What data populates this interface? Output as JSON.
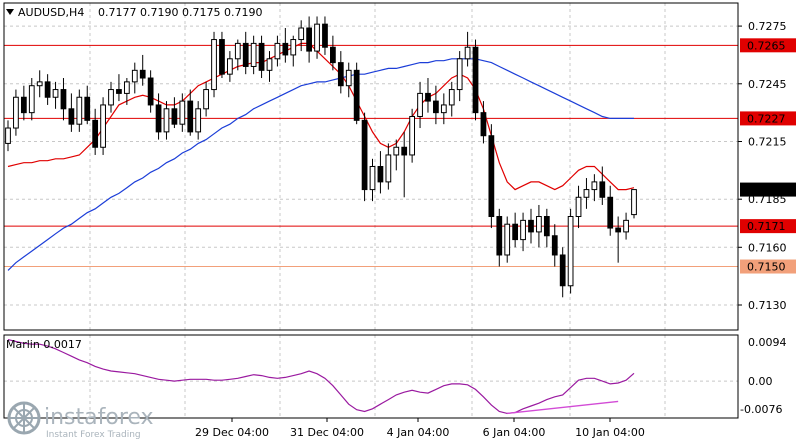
{
  "header": {
    "symbol_tf": "AUDUSD,H4",
    "ohlc": "0.7177 0.7190 0.7175 0.7190"
  },
  "oscillator": {
    "label": "Marlin 0.0017",
    "ticks": [
      "0.0094",
      "0.00",
      "-0.0076"
    ]
  },
  "watermark": {
    "brand": "instaforex",
    "tagline": "Instant Forex Trading"
  },
  "colors": {
    "background": "#ffffff",
    "grid": "#c8c8c8",
    "level_line": "#e00000",
    "level_line_light": "#f2a07a",
    "ma_fast": "#e00000",
    "ma_slow": "#1c3ed8",
    "oscillator": "#9a1aa0",
    "divergence": "#d24bd6",
    "current_price_bg": "#000000",
    "level_label_bg": "#e00000"
  },
  "chart_data": {
    "type": "candlestick",
    "title": "AUDUSD,H4",
    "y_ticks": [
      0.7275,
      0.7245,
      0.7215,
      0.7185,
      0.716,
      0.713
    ],
    "ylim": [
      0.7117,
      0.7287
    ],
    "x_ticks": [
      "29 Dec 04:00",
      "31 Dec 04:00",
      "4 Jan 04:00",
      "6 Jan 04:00",
      "10 Jan 04:00"
    ],
    "levels": [
      {
        "value": 0.7265,
        "label": "0.7265",
        "style": "solid"
      },
      {
        "value": 0.7227,
        "label": "0.7227",
        "style": "solid"
      },
      {
        "value": 0.7171,
        "label": "0.7171",
        "style": "solid"
      },
      {
        "value": 0.715,
        "label": "0.7150",
        "style": "light"
      }
    ],
    "current_price": {
      "value": 0.719,
      "label": "0.7190"
    },
    "candles": [
      [
        0.7214,
        0.7226,
        0.721,
        0.7222
      ],
      [
        0.7222,
        0.7242,
        0.7218,
        0.7238
      ],
      [
        0.7238,
        0.7244,
        0.7226,
        0.723
      ],
      [
        0.723,
        0.7248,
        0.7226,
        0.7244
      ],
      [
        0.7244,
        0.7252,
        0.7238,
        0.7246
      ],
      [
        0.7246,
        0.725,
        0.7234,
        0.7238
      ],
      [
        0.7238,
        0.7246,
        0.7232,
        0.7242
      ],
      [
        0.7242,
        0.7248,
        0.7226,
        0.7232
      ],
      [
        0.7232,
        0.724,
        0.722,
        0.7224
      ],
      [
        0.7224,
        0.7242,
        0.722,
        0.7238
      ],
      [
        0.7238,
        0.7244,
        0.7224,
        0.7226
      ],
      [
        0.7226,
        0.7232,
        0.7208,
        0.7212
      ],
      [
        0.7212,
        0.7238,
        0.7208,
        0.7234
      ],
      [
        0.7234,
        0.7246,
        0.723,
        0.7242
      ],
      [
        0.7242,
        0.725,
        0.7236,
        0.724
      ],
      [
        0.724,
        0.7248,
        0.7234,
        0.7246
      ],
      [
        0.7246,
        0.7256,
        0.724,
        0.7252
      ],
      [
        0.7252,
        0.726,
        0.7244,
        0.7248
      ],
      [
        0.7248,
        0.7252,
        0.723,
        0.7234
      ],
      [
        0.7234,
        0.724,
        0.7216,
        0.722
      ],
      [
        0.722,
        0.7236,
        0.7216,
        0.7232
      ],
      [
        0.7232,
        0.7238,
        0.7222,
        0.7224
      ],
      [
        0.7224,
        0.724,
        0.722,
        0.7236
      ],
      [
        0.7236,
        0.7242,
        0.7218,
        0.722
      ],
      [
        0.722,
        0.7236,
        0.7216,
        0.7232
      ],
      [
        0.7232,
        0.7246,
        0.7228,
        0.7242
      ],
      [
        0.7242,
        0.7272,
        0.7238,
        0.7268
      ],
      [
        0.7268,
        0.7272,
        0.7248,
        0.725
      ],
      [
        0.725,
        0.7262,
        0.7246,
        0.7258
      ],
      [
        0.7258,
        0.7268,
        0.7252,
        0.7266
      ],
      [
        0.7266,
        0.7272,
        0.725,
        0.7254
      ],
      [
        0.7254,
        0.727,
        0.725,
        0.7266
      ],
      [
        0.7266,
        0.727,
        0.7248,
        0.7252
      ],
      [
        0.7252,
        0.7262,
        0.7246,
        0.7258
      ],
      [
        0.7258,
        0.727,
        0.7254,
        0.7266
      ],
      [
        0.7266,
        0.7274,
        0.7256,
        0.726
      ],
      [
        0.726,
        0.727,
        0.7254,
        0.7268
      ],
      [
        0.7268,
        0.7278,
        0.7262,
        0.7274
      ],
      [
        0.7274,
        0.728,
        0.7256,
        0.7262
      ],
      [
        0.7262,
        0.728,
        0.7258,
        0.7276
      ],
      [
        0.7276,
        0.728,
        0.726,
        0.7264
      ],
      [
        0.7264,
        0.727,
        0.7252,
        0.7256
      ],
      [
        0.7256,
        0.7262,
        0.724,
        0.7244
      ],
      [
        0.7244,
        0.7256,
        0.7238,
        0.7252
      ],
      [
        0.7252,
        0.7256,
        0.7224,
        0.7226
      ],
      [
        0.7226,
        0.723,
        0.7184,
        0.719
      ],
      [
        0.719,
        0.7206,
        0.7184,
        0.7202
      ],
      [
        0.7202,
        0.721,
        0.7188,
        0.7194
      ],
      [
        0.7194,
        0.7214,
        0.719,
        0.7208
      ],
      [
        0.7208,
        0.7216,
        0.72,
        0.7212
      ],
      [
        0.7212,
        0.722,
        0.7186,
        0.7208
      ],
      [
        0.7208,
        0.7232,
        0.7204,
        0.7228
      ],
      [
        0.7228,
        0.7246,
        0.7222,
        0.724
      ],
      [
        0.724,
        0.7248,
        0.723,
        0.7236
      ],
      [
        0.7236,
        0.7244,
        0.7224,
        0.723
      ],
      [
        0.723,
        0.724,
        0.7224,
        0.7234
      ],
      [
        0.7234,
        0.7246,
        0.7228,
        0.7242
      ],
      [
        0.7242,
        0.7262,
        0.7236,
        0.7258
      ],
      [
        0.7258,
        0.7272,
        0.7254,
        0.7264
      ],
      [
        0.7264,
        0.7268,
        0.7226,
        0.723
      ],
      [
        0.723,
        0.7236,
        0.7214,
        0.7218
      ],
      [
        0.7218,
        0.7224,
        0.717,
        0.7176
      ],
      [
        0.7176,
        0.718,
        0.715,
        0.7156
      ],
      [
        0.7156,
        0.7176,
        0.7152,
        0.7172
      ],
      [
        0.7172,
        0.7178,
        0.716,
        0.7164
      ],
      [
        0.7164,
        0.7178,
        0.7158,
        0.7174
      ],
      [
        0.7174,
        0.718,
        0.7162,
        0.7168
      ],
      [
        0.7168,
        0.7182,
        0.716,
        0.7176
      ],
      [
        0.7176,
        0.718,
        0.716,
        0.7166
      ],
      [
        0.7166,
        0.7172,
        0.715,
        0.7156
      ],
      [
        0.7156,
        0.716,
        0.7134,
        0.714
      ],
      [
        0.714,
        0.718,
        0.7136,
        0.7176
      ],
      [
        0.7176,
        0.7192,
        0.717,
        0.7186
      ],
      [
        0.7186,
        0.7196,
        0.718,
        0.719
      ],
      [
        0.719,
        0.7198,
        0.7184,
        0.7194
      ],
      [
        0.7194,
        0.7202,
        0.7182,
        0.7186
      ],
      [
        0.7186,
        0.7192,
        0.7166,
        0.717
      ],
      [
        0.717,
        0.7176,
        0.7152,
        0.7168
      ],
      [
        0.7168,
        0.7178,
        0.7164,
        0.7174
      ],
      [
        0.7177,
        0.719,
        0.7175,
        0.719
      ]
    ],
    "ma_fast": [
      0.7202,
      0.7203,
      0.7204,
      0.7204,
      0.7205,
      0.7205,
      0.7206,
      0.7206,
      0.7207,
      0.7208,
      0.7212,
      0.7216,
      0.7222,
      0.7228,
      0.7234,
      0.7236,
      0.7238,
      0.7239,
      0.7238,
      0.7236,
      0.7234,
      0.7234,
      0.7236,
      0.724,
      0.7244,
      0.7246,
      0.7248,
      0.725,
      0.7252,
      0.7254,
      0.7255,
      0.7256,
      0.7256,
      0.7258,
      0.726,
      0.7262,
      0.7264,
      0.7266,
      0.7266,
      0.7262,
      0.7258,
      0.7254,
      0.725,
      0.7244,
      0.7236,
      0.7228,
      0.722,
      0.7214,
      0.7212,
      0.7214,
      0.722,
      0.7228,
      0.7234,
      0.7238,
      0.724,
      0.7244,
      0.7248,
      0.725,
      0.7248,
      0.7242,
      0.7232,
      0.7218,
      0.7204,
      0.7194,
      0.719,
      0.7192,
      0.7194,
      0.7194,
      0.7192,
      0.719,
      0.7192,
      0.7196,
      0.72,
      0.7202,
      0.7202,
      0.7198,
      0.7194,
      0.719,
      0.719,
      0.7191
    ],
    "ma_slow": [
      0.7148,
      0.7152,
      0.7155,
      0.7158,
      0.7161,
      0.7164,
      0.7167,
      0.717,
      0.7172,
      0.7175,
      0.7178,
      0.718,
      0.7183,
      0.7186,
      0.7188,
      0.7191,
      0.7194,
      0.7196,
      0.7199,
      0.7201,
      0.7204,
      0.7206,
      0.7209,
      0.7211,
      0.7214,
      0.7216,
      0.7219,
      0.7222,
      0.7224,
      0.7227,
      0.7229,
      0.7232,
      0.7234,
      0.7236,
      0.7238,
      0.724,
      0.7242,
      0.7244,
      0.7245,
      0.7246,
      0.7246,
      0.7247,
      0.7248,
      0.7249,
      0.725,
      0.725,
      0.7251,
      0.7252,
      0.7253,
      0.7253,
      0.7254,
      0.7255,
      0.7256,
      0.7256,
      0.7257,
      0.7257,
      0.7258,
      0.7258,
      0.7258,
      0.7258,
      0.7257,
      0.7256,
      0.7254,
      0.7252,
      0.725,
      0.7248,
      0.7246,
      0.7244,
      0.7242,
      0.724,
      0.7238,
      0.7236,
      0.7234,
      0.7232,
      0.723,
      0.7228,
      0.7227,
      0.7227,
      0.7227,
      0.7227
    ],
    "osc_ylim": [
      -0.008,
      0.01
    ],
    "oscillator": [
      0.009,
      0.0086,
      0.0082,
      0.008,
      0.008,
      0.0076,
      0.007,
      0.0062,
      0.0054,
      0.0046,
      0.004,
      0.0032,
      0.0026,
      0.0022,
      0.002,
      0.0018,
      0.0016,
      0.0012,
      0.0008,
      0.0004,
      0.0002,
      0.0,
      0.0002,
      0.0004,
      0.0004,
      0.0004,
      0.0002,
      0.0002,
      0.0004,
      0.0006,
      0.001,
      0.0014,
      0.0012,
      0.0008,
      0.0006,
      0.0008,
      0.0012,
      0.0016,
      0.0022,
      0.0016,
      0.0006,
      -0.001,
      -0.003,
      -0.005,
      -0.0062,
      -0.0066,
      -0.006,
      -0.005,
      -0.004,
      -0.003,
      -0.0024,
      -0.002,
      -0.0024,
      -0.0026,
      -0.0018,
      -0.001,
      -0.0006,
      -0.0006,
      -0.0008,
      -0.0018,
      -0.0034,
      -0.0052,
      -0.0066,
      -0.007,
      -0.0068,
      -0.006,
      -0.0054,
      -0.0048,
      -0.004,
      -0.0034,
      -0.003,
      -0.0014,
      0.0002,
      0.0006,
      0.0006,
      0.0,
      -0.0006,
      -0.0004,
      0.0002,
      0.0017
    ],
    "divergence": {
      "from": [
        63,
        -0.007
      ],
      "to": [
        77,
        -0.0044
      ]
    }
  }
}
